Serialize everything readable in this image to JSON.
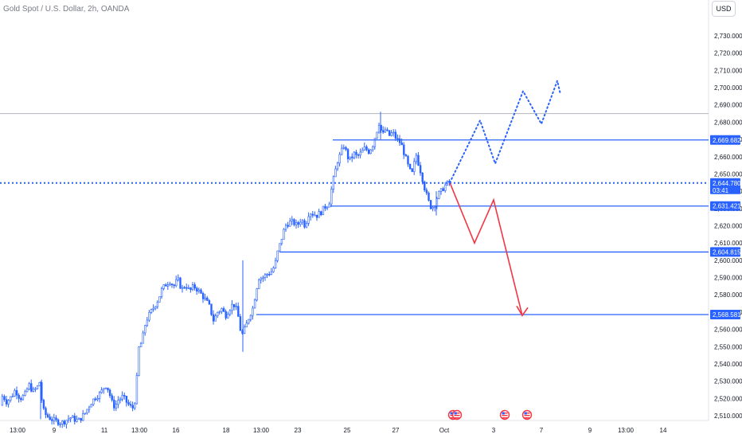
{
  "header": {
    "symbol_title": "Gold Spot / U.S. Dollar, 2h, OANDA",
    "currency": "USD"
  },
  "colors": {
    "candle": "#2962ff",
    "levels": "#2962ff",
    "bear_projection": "#f23645",
    "bull_projection": "#2962ff",
    "grid_text": "#131722",
    "event_flag": "#f23645"
  },
  "chart_data": {
    "type": "candlestick",
    "title": "",
    "ylim": [
      2505,
      2745
    ],
    "y_ticks": [
      2510,
      2520,
      2530,
      2540,
      2550,
      2560,
      2570,
      2580,
      2590,
      2600,
      2610,
      2620,
      2630,
      2640,
      2650,
      2660,
      2670,
      2680,
      2690,
      2700,
      2710,
      2720,
      2730
    ],
    "y_tick_labels": [
      "2,510.000",
      "2,520.000",
      "2,530.000",
      "2,540.000",
      "2,550.000",
      "2,560.000",
      "2,570.000",
      "2,580.000",
      "2,590.000",
      "2,600.000",
      "2,610.000",
      "2,620.000",
      "2,630.000",
      "2,640.000",
      "2,650.000",
      "2,660.000",
      "2,670.000",
      "2,680.000",
      "2,690.000",
      "2,700.000",
      "2,710.000",
      "2,720.000",
      "2,730.000"
    ],
    "x_tick_labels": [
      "13:00",
      "9",
      "11",
      "13:00",
      "16",
      "18",
      "13:00",
      "23",
      "25",
      "27",
      "Oct",
      "3",
      "7",
      "9",
      "13:00",
      "14"
    ],
    "price_path": [
      [
        0,
        2512
      ],
      [
        5,
        2522
      ],
      [
        10,
        2518
      ],
      [
        16,
        2521
      ],
      [
        21,
        2525
      ],
      [
        27,
        2520
      ],
      [
        33,
        2522
      ],
      [
        38,
        2528
      ],
      [
        43,
        2524
      ],
      [
        48,
        2526
      ],
      [
        52,
        2530
      ],
      [
        55,
        2514
      ],
      [
        60,
        2510
      ],
      [
        70,
        2507
      ],
      [
        80,
        2506
      ],
      [
        90,
        2509
      ],
      [
        100,
        2507
      ],
      [
        108,
        2511
      ],
      [
        115,
        2517
      ],
      [
        122,
        2521
      ],
      [
        128,
        2523
      ],
      [
        134,
        2528
      ],
      [
        138,
        2525
      ],
      [
        142,
        2518
      ],
      [
        146,
        2515
      ],
      [
        150,
        2519
      ],
      [
        156,
        2521
      ],
      [
        162,
        2517
      ],
      [
        168,
        2514
      ],
      [
        172,
        2520
      ],
      [
        176,
        2549
      ],
      [
        180,
        2553
      ],
      [
        185,
        2565
      ],
      [
        190,
        2569
      ],
      [
        195,
        2573
      ],
      [
        200,
        2577
      ],
      [
        205,
        2583
      ],
      [
        210,
        2586
      ],
      [
        215,
        2588
      ],
      [
        220,
        2585
      ],
      [
        225,
        2589
      ],
      [
        230,
        2583
      ],
      [
        235,
        2586
      ],
      [
        240,
        2582
      ],
      [
        245,
        2585
      ],
      [
        250,
        2583
      ],
      [
        255,
        2580
      ],
      [
        260,
        2577
      ],
      [
        265,
        2573
      ],
      [
        270,
        2565
      ],
      [
        275,
        2570
      ],
      [
        280,
        2572
      ],
      [
        285,
        2568
      ],
      [
        290,
        2572
      ],
      [
        295,
        2575
      ],
      [
        300,
        2570
      ],
      [
        305,
        2556
      ],
      [
        310,
        2561
      ],
      [
        315,
        2568
      ],
      [
        320,
        2573
      ],
      [
        323,
        2582
      ],
      [
        327,
        2590
      ],
      [
        332,
        2590
      ],
      [
        337,
        2592
      ],
      [
        342,
        2593
      ],
      [
        347,
        2597
      ],
      [
        350,
        2604
      ],
      [
        355,
        2612
      ],
      [
        360,
        2620
      ],
      [
        365,
        2622
      ],
      [
        370,
        2622
      ],
      [
        375,
        2620
      ],
      [
        380,
        2624
      ],
      [
        385,
        2620
      ],
      [
        390,
        2628
      ],
      [
        395,
        2627
      ],
      [
        400,
        2626
      ],
      [
        405,
        2628
      ],
      [
        410,
        2631
      ],
      [
        415,
        2633
      ],
      [
        418,
        2641
      ],
      [
        422,
        2650
      ],
      [
        426,
        2658
      ],
      [
        430,
        2662
      ],
      [
        434,
        2667
      ],
      [
        438,
        2660
      ],
      [
        442,
        2658
      ],
      [
        446,
        2662
      ],
      [
        450,
        2660
      ],
      [
        455,
        2662
      ],
      [
        460,
        2665
      ],
      [
        465,
        2663
      ],
      [
        470,
        2667
      ],
      [
        475,
        2675
      ],
      [
        478,
        2680
      ],
      [
        482,
        2672
      ],
      [
        486,
        2676
      ],
      [
        490,
        2672
      ],
      [
        495,
        2674
      ],
      [
        500,
        2670
      ],
      [
        505,
        2668
      ],
      [
        508,
        2664
      ],
      [
        512,
        2658
      ],
      [
        516,
        2652
      ],
      [
        520,
        2650
      ],
      [
        524,
        2662
      ],
      [
        528,
        2655
      ],
      [
        532,
        2648
      ],
      [
        536,
        2640
      ],
      [
        540,
        2634
      ],
      [
        544,
        2630
      ],
      [
        548,
        2633
      ],
      [
        552,
        2638
      ],
      [
        556,
        2640
      ],
      [
        560,
        2643
      ],
      [
        565,
        2645
      ]
    ],
    "levels": [
      {
        "label": "2,669.682",
        "value": 2669.682,
        "x_start": 418
      },
      {
        "label": "2,631.421",
        "value": 2631.421,
        "x_start": 415
      },
      {
        "label": "2,604.815",
        "value": 2604.815,
        "x_start": 352
      },
      {
        "label": "2,568.581",
        "value": 2568.581,
        "x_start": 322
      }
    ],
    "current_price": {
      "label": "2,644.780",
      "countdown": "03:41",
      "value": 2644.78
    },
    "bear_projection": [
      [
        565,
        2645
      ],
      [
        596,
        2610
      ],
      [
        620,
        2635
      ],
      [
        656,
        2568
      ]
    ],
    "bull_projection": [
      [
        565,
        2645
      ],
      [
        603,
        2681
      ],
      [
        622,
        2656
      ],
      [
        657,
        2698
      ],
      [
        680,
        2679
      ],
      [
        700,
        2704
      ],
      [
        704,
        2696
      ]
    ],
    "resistance_line": {
      "value": 2685
    }
  }
}
